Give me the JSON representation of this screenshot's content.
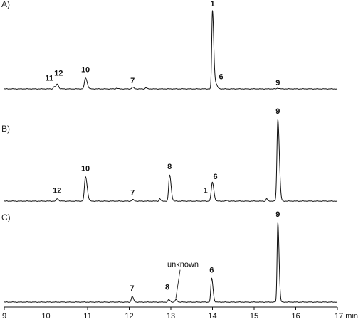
{
  "chart_data": {
    "type": "line",
    "x_unit": "min",
    "xlim": [
      9,
      17
    ],
    "x_ticks": [
      9,
      10,
      11,
      12,
      13,
      14,
      15,
      16,
      17
    ],
    "x_tick_labels": [
      "9",
      "10",
      "11",
      "12",
      "13",
      "14",
      "15",
      "16",
      "17"
    ],
    "x_end_label": "17 min",
    "grid": false,
    "panels": [
      {
        "label": "A)",
        "y_rel_max": 1.0,
        "peaks": [
          {
            "label": "11",
            "x": 10.2,
            "height": 0.03,
            "width": 0.02
          },
          {
            "label": "12",
            "x": 10.27,
            "height": 0.06,
            "width": 0.02
          },
          {
            "label": "10",
            "x": 10.95,
            "height": 0.14,
            "width": 0.025
          },
          {
            "label": "7",
            "x": 12.08,
            "height": 0.02,
            "width": 0.02
          },
          {
            "label": "1",
            "x": 14.0,
            "height": 1.0,
            "width": 0.018
          },
          {
            "label": "6",
            "x": 14.07,
            "height": 0.07,
            "width": 0.025
          },
          {
            "label": "9",
            "x": 15.57,
            "height": 0.01,
            "width": 0.02
          }
        ],
        "minor_peaks": [
          {
            "x": 11.7,
            "height": 0.01,
            "width": 0.015
          },
          {
            "x": 12.4,
            "height": 0.015,
            "width": 0.015
          }
        ]
      },
      {
        "label": "B)",
        "y_rel_max": 1.0,
        "peaks": [
          {
            "label": "12",
            "x": 10.27,
            "height": 0.03,
            "width": 0.02
          },
          {
            "label": "10",
            "x": 10.95,
            "height": 0.3,
            "width": 0.025
          },
          {
            "label": "7",
            "x": 12.08,
            "height": 0.02,
            "width": 0.02
          },
          {
            "label": "8",
            "x": 12.97,
            "height": 0.32,
            "width": 0.022
          },
          {
            "label": "1",
            "x": 13.97,
            "height": 0.05,
            "width": 0.02
          },
          {
            "label": "6",
            "x": 14.0,
            "height": 0.2,
            "width": 0.022
          },
          {
            "label": "9",
            "x": 15.57,
            "height": 1.0,
            "width": 0.022
          }
        ],
        "minor_peaks": [
          {
            "x": 12.73,
            "height": 0.03,
            "width": 0.015
          },
          {
            "x": 15.3,
            "height": 0.03,
            "width": 0.015
          },
          {
            "x": 14.35,
            "height": 0.01,
            "width": 0.015
          }
        ]
      },
      {
        "label": "C)",
        "y_rel_max": 1.0,
        "peaks": [
          {
            "label": "7",
            "x": 12.07,
            "height": 0.07,
            "width": 0.02
          },
          {
            "label": "8",
            "x": 12.95,
            "height": 0.03,
            "width": 0.02
          },
          {
            "label": "unknown",
            "x": 13.12,
            "height": 0.03,
            "width": 0.02
          },
          {
            "label": "6",
            "x": 13.98,
            "height": 0.3,
            "width": 0.02
          },
          {
            "label": "9",
            "x": 15.57,
            "height": 1.0,
            "width": 0.018
          }
        ],
        "minor_peaks": []
      }
    ]
  }
}
